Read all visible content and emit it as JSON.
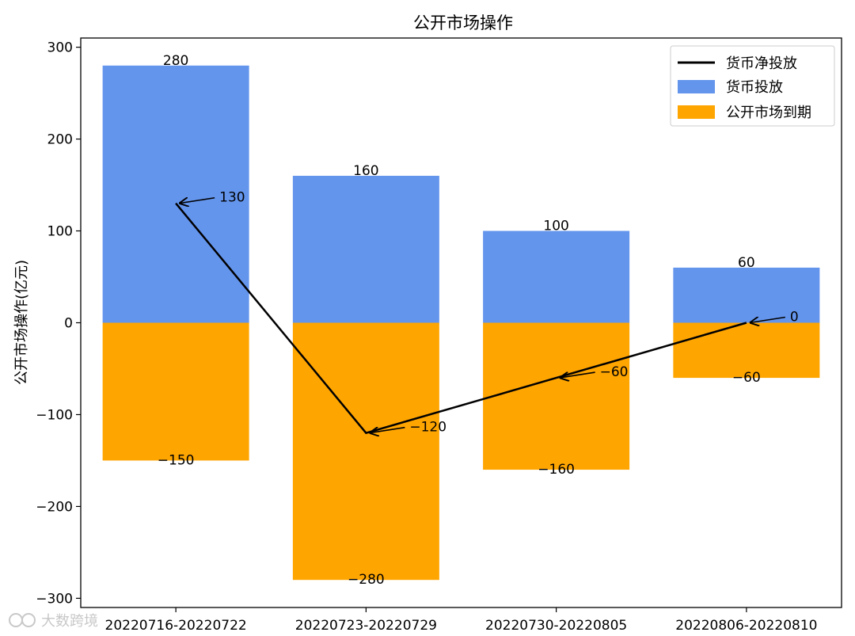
{
  "chart_data": {
    "type": "bar",
    "title": "公开市场操作",
    "ylabel": "公开市场操作(亿元)",
    "xlabel": "",
    "categories": [
      "20220716-20220722",
      "20220723-20220729",
      "20220730-20220805",
      "20220806-20220810"
    ],
    "ylim": [
      -310,
      310
    ],
    "yticks": [
      300,
      200,
      100,
      0,
      -100,
      -200,
      -300
    ],
    "ytick_labels": [
      "300",
      "200",
      "100",
      "0",
      "−100",
      "−200",
      "−300"
    ],
    "series": [
      {
        "name": "货币投放",
        "kind": "bar",
        "color": "#6495ED",
        "values": [
          280,
          160,
          100,
          60
        ],
        "labels": [
          "280",
          "160",
          "100",
          "60"
        ]
      },
      {
        "name": "公开市场到期",
        "kind": "bar",
        "color": "#FFA500",
        "values": [
          -150,
          -280,
          -160,
          -60
        ],
        "labels": [
          "−150",
          "−280",
          "−160",
          "−60"
        ]
      },
      {
        "name": "货币净投放",
        "kind": "line",
        "color": "#000000",
        "values": [
          130,
          -120,
          -60,
          0
        ],
        "labels": [
          "130",
          "−120",
          "−60",
          "0"
        ]
      }
    ],
    "legend_position": "top-right",
    "grid": false
  },
  "watermark": "大数跨境"
}
